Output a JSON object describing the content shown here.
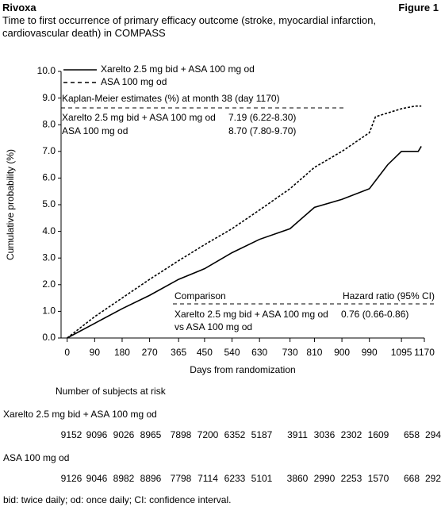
{
  "header": {
    "title": "Rivoxa",
    "figure": "Figure 1",
    "subtitle": "Time to first occurrence of primary efficacy outcome (stroke, myocardial infarction, cardiovascular death) in COMPASS"
  },
  "chart_data": {
    "type": "line",
    "xlabel": "Days from randomization",
    "ylabel": "Cumulative probability (%)",
    "xlim": [
      -20,
      1170
    ],
    "ylim": [
      0,
      10
    ],
    "xticks": [
      0,
      90,
      180,
      270,
      365,
      450,
      540,
      630,
      730,
      810,
      900,
      990,
      1095,
      1170
    ],
    "yticks": [
      {
        "value": 0,
        "label": "0.0"
      },
      {
        "value": 1,
        "label": "1.0"
      },
      {
        "value": 2,
        "label": "2.0"
      },
      {
        "value": 3,
        "label": "3.0"
      },
      {
        "value": 4,
        "label": "4.0"
      },
      {
        "value": 5,
        "label": "5.0"
      },
      {
        "value": 6,
        "label": "6.0"
      },
      {
        "value": 7,
        "label": "7.0"
      },
      {
        "value": 8,
        "label": "8.0"
      },
      {
        "value": 9,
        "label": "9.0"
      },
      {
        "value": 10,
        "label": "10.0"
      }
    ],
    "series": [
      {
        "name": "Xarelto 2.5 mg bid + ASA 100 mg od",
        "color": "#000000",
        "dash": "solid",
        "x": [
          0,
          90,
          180,
          270,
          365,
          450,
          540,
          630,
          730,
          810,
          900,
          990,
          1050,
          1095,
          1150,
          1160
        ],
        "values": [
          0,
          0.55,
          1.1,
          1.6,
          2.2,
          2.6,
          3.2,
          3.7,
          4.1,
          4.9,
          5.2,
          5.6,
          6.5,
          7.0,
          7.0,
          7.19
        ]
      },
      {
        "name": "ASA 100 mg od",
        "color": "#000000",
        "dash": "dashed",
        "x": [
          0,
          90,
          180,
          270,
          365,
          450,
          540,
          630,
          730,
          810,
          900,
          990,
          1010,
          1095,
          1140,
          1160
        ],
        "values": [
          0,
          0.8,
          1.5,
          2.2,
          2.9,
          3.5,
          4.1,
          4.8,
          5.6,
          6.4,
          7.0,
          7.7,
          8.3,
          8.6,
          8.7,
          8.7
        ]
      }
    ],
    "km_box": {
      "title": "Kaplan-Meier estimates (%) at month 38 (day 1170)",
      "rows": [
        [
          "Xarelto 2.5 mg bid + ASA 100 mg od",
          "7.19 (6.22-8.30)"
        ],
        [
          "ASA 100 mg od",
          "8.70 (7.80-9.70)"
        ]
      ]
    },
    "comparison_box": {
      "header": [
        "Comparison",
        "Hazard ratio (95% CI)"
      ],
      "lines": [
        "Xarelto 2.5 mg bid + ASA 100 mg od",
        "vs ASA 100 mg od"
      ],
      "ratio": "0.76 (0.66-0.86)"
    }
  },
  "risk_table": {
    "title": "Number of subjects at risk",
    "groups": [
      {
        "name": "Xarelto 2.5 mg bid + ASA 100 mg od",
        "values": [
          9152,
          9096,
          9026,
          8965,
          7898,
          7200,
          6352,
          5187,
          3911,
          3036,
          2302,
          1609,
          658,
          294
        ]
      },
      {
        "name": "ASA 100 mg od",
        "values": [
          9126,
          9046,
          8982,
          8896,
          7798,
          7114,
          6233,
          5101,
          3860,
          2990,
          2253,
          1570,
          668,
          292
        ]
      }
    ]
  },
  "footnote": "bid: twice daily; od: once daily; CI: confidence interval."
}
